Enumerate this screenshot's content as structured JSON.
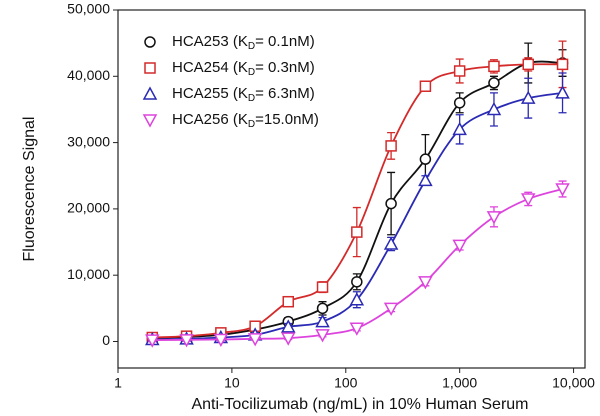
{
  "chart_data": {
    "type": "scatter",
    "x_label": "Anti-Tocilizumab (ng/mL) in 10% Human Serum",
    "y_label": "Fluorescence Signal",
    "xscale": "log",
    "xlim": [
      1,
      12600
    ],
    "xticks": [
      1,
      10,
      100,
      {
        "value": 1000,
        "label": "1,000"
      },
      {
        "value": 10000,
        "label": "10,000"
      }
    ],
    "ylim": [
      -4000,
      50000
    ],
    "yticks": [
      0,
      {
        "value": 10000,
        "label": "10,000"
      },
      {
        "value": 20000,
        "label": "20,000"
      },
      {
        "value": 30000,
        "label": "30,000"
      },
      {
        "value": 40000,
        "label": "40,000"
      },
      {
        "value": 50000,
        "label": "50,000"
      }
    ],
    "legend": "upper left",
    "x": [
      2,
      4,
      8,
      16,
      31.25,
      62.5,
      125,
      250,
      500,
      1000,
      2000,
      4000,
      8000
    ],
    "series": [
      {
        "name": "HCA253 (KD=  0.1nM)",
        "color": "#111111",
        "marker": "circle",
        "values": [
          500,
          700,
          1000,
          1800,
          3000,
          5000,
          9000,
          20800,
          27500,
          36000,
          39000,
          42000,
          42000
        ],
        "errors": [
          300,
          300,
          300,
          300,
          600,
          1000,
          1200,
          4700,
          3700,
          1500,
          1000,
          3000,
          2000
        ]
      },
      {
        "name": "HCA254 (KD=  0.3nM)",
        "color": "#d42a2a",
        "marker": "square",
        "values": [
          600,
          800,
          1300,
          2300,
          6000,
          8200,
          16500,
          29500,
          38500,
          40800,
          41500,
          41800,
          41800
        ],
        "errors": [
          300,
          300,
          300,
          300,
          500,
          800,
          3700,
          2000,
          700,
          1800,
          1000,
          1000,
          3500
        ]
      },
      {
        "name": "HCA255 (KD=  6.3nM)",
        "color": "#2a2ab4",
        "marker": "triangle-up",
        "values": [
          300,
          400,
          600,
          1000,
          2200,
          3000,
          6300,
          14700,
          24300,
          32000,
          35000,
          36700,
          37500
        ],
        "errors": [
          300,
          300,
          300,
          300,
          500,
          600,
          1200,
          1000,
          700,
          2200,
          2500,
          3000,
          3000
        ]
      },
      {
        "name": "HCA256 (KD=15.0nM)",
        "color": "#dd44dd",
        "marker": "triangle-down",
        "values": [
          200,
          250,
          300,
          400,
          500,
          1000,
          2000,
          5000,
          9000,
          14500,
          18800,
          21500,
          23000
        ],
        "errors": [
          200,
          200,
          200,
          200,
          200,
          300,
          400,
          500,
          600,
          700,
          1500,
          1000,
          1200
        ]
      }
    ]
  }
}
